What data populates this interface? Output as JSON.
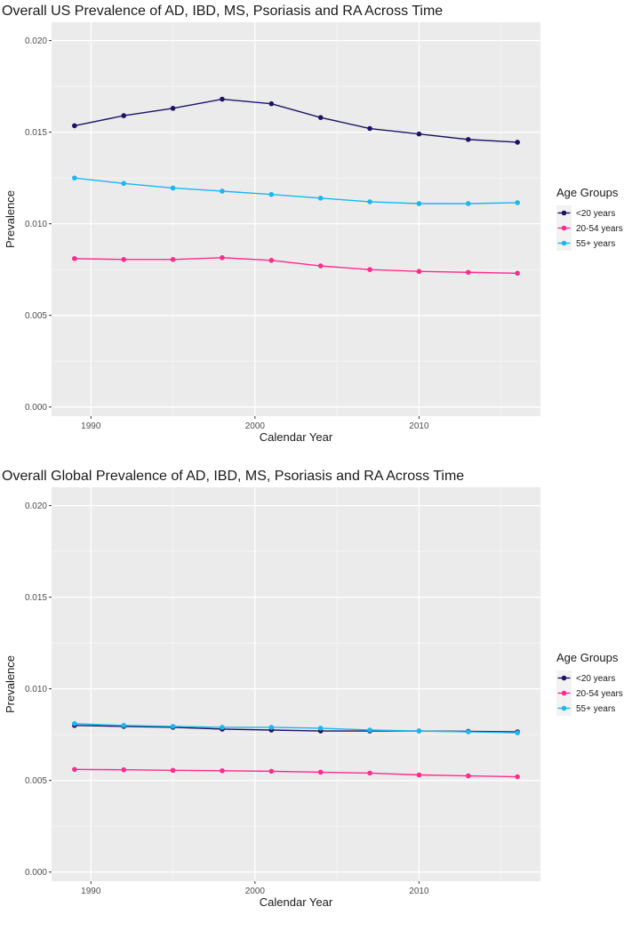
{
  "chart_data": [
    {
      "type": "line",
      "title": "Overall US Prevalence of AD, IBD, MS, Psoriasis and RA Across Time",
      "xlabel": "Calendar Year",
      "ylabel": "Prevalence",
      "xlim": [
        1987.6,
        2017.4
      ],
      "ylim": [
        -0.0005,
        0.021
      ],
      "x_ticks": [
        1990,
        2000,
        2010
      ],
      "x_tick_labels": [
        "1990",
        "2000",
        "2010"
      ],
      "y_ticks": [
        0,
        0.005,
        0.01,
        0.015,
        0.02
      ],
      "y_tick_labels": [
        "0.000",
        "0.005",
        "0.010",
        "0.015",
        "0.020"
      ],
      "grid": true,
      "legend": {
        "title": "Age Groups",
        "position": "right"
      },
      "x": [
        1989,
        1992,
        1995,
        1998,
        2001,
        2004,
        2007,
        2010,
        2013,
        2016
      ],
      "series": [
        {
          "name": "<20 years",
          "color": "#1b1464",
          "values": [
            0.01535,
            0.0159,
            0.0163,
            0.0168,
            0.01655,
            0.0158,
            0.0152,
            0.0149,
            0.0146,
            0.01445
          ]
        },
        {
          "name": "20-54 years",
          "color": "#ff2b8f",
          "values": [
            0.0081,
            0.00805,
            0.00805,
            0.00815,
            0.008,
            0.0077,
            0.0075,
            0.0074,
            0.00735,
            0.0073
          ]
        },
        {
          "name": "55+ years",
          "color": "#1ab7f0",
          "values": [
            0.0125,
            0.0122,
            0.01195,
            0.01178,
            0.0116,
            0.0114,
            0.0112,
            0.0111,
            0.0111,
            0.01115
          ]
        }
      ]
    },
    {
      "type": "line",
      "title": "Overall Global Prevalence of AD, IBD, MS, Psoriasis and RA Across Time",
      "xlabel": "Calendar Year",
      "ylabel": "Prevalence",
      "xlim": [
        1987.6,
        2017.4
      ],
      "ylim": [
        -0.0005,
        0.021
      ],
      "x_ticks": [
        1990,
        2000,
        2010
      ],
      "x_tick_labels": [
        "1990",
        "2000",
        "2010"
      ],
      "y_ticks": [
        0,
        0.005,
        0.01,
        0.015,
        0.02
      ],
      "y_tick_labels": [
        "0.000",
        "0.005",
        "0.010",
        "0.015",
        "0.020"
      ],
      "grid": true,
      "legend": {
        "title": "Age Groups",
        "position": "right"
      },
      "x": [
        1989,
        1992,
        1995,
        1998,
        2001,
        2004,
        2007,
        2010,
        2013,
        2016
      ],
      "series": [
        {
          "name": "<20 years",
          "color": "#1b1464",
          "values": [
            0.008,
            0.00795,
            0.0079,
            0.0078,
            0.00775,
            0.0077,
            0.0077,
            0.0077,
            0.00768,
            0.00765
          ]
        },
        {
          "name": "20-54 years",
          "color": "#ff2b8f",
          "values": [
            0.0056,
            0.00558,
            0.00555,
            0.00553,
            0.0055,
            0.00545,
            0.0054,
            0.0053,
            0.00525,
            0.0052
          ]
        },
        {
          "name": "55+ years",
          "color": "#1ab7f0",
          "values": [
            0.0081,
            0.008,
            0.00795,
            0.0079,
            0.0079,
            0.00785,
            0.00775,
            0.0077,
            0.00765,
            0.0076
          ]
        }
      ]
    }
  ]
}
